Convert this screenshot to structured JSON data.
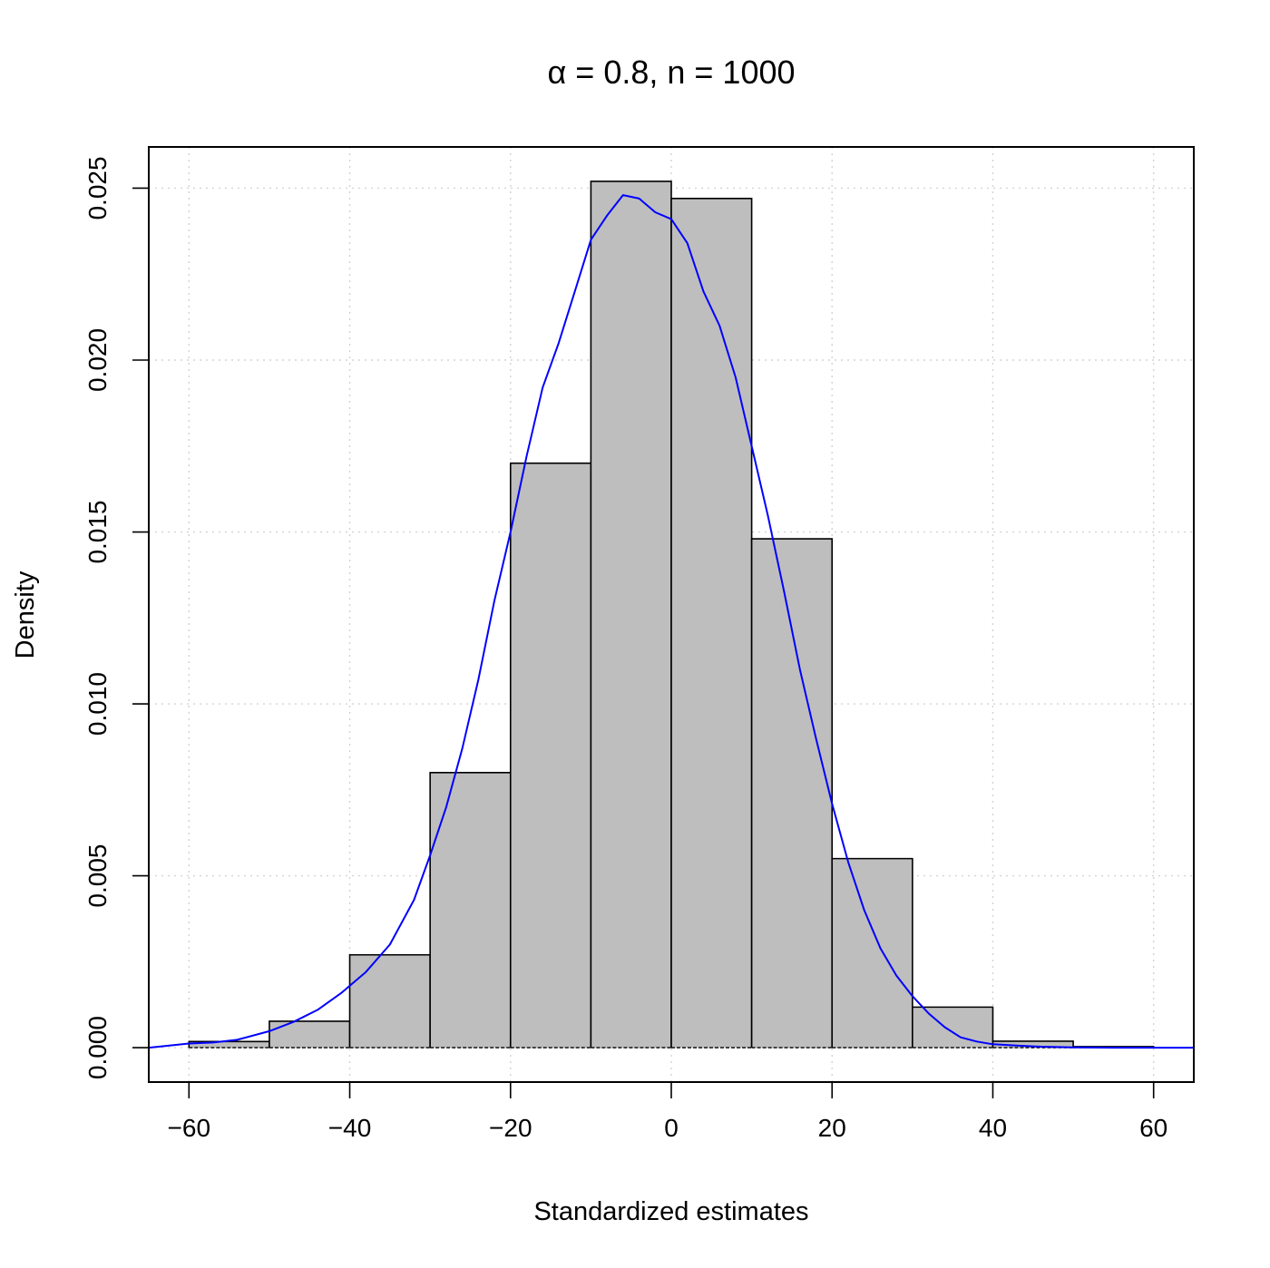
{
  "chart_data": {
    "type": "bar",
    "title": "α = 0.8, n = 1000",
    "xlabel": "Standardized estimates",
    "ylabel": "Density",
    "xlim": [
      -65,
      65
    ],
    "ylim": [
      -0.001,
      0.0262
    ],
    "x_ticks": [
      "−60",
      "−40",
      "−20",
      "0",
      "20",
      "40",
      "60"
    ],
    "x_tick_values": [
      -60,
      -40,
      -20,
      0,
      20,
      40,
      60
    ],
    "y_ticks": [
      "0.000",
      "0.005",
      "0.010",
      "0.015",
      "0.020",
      "0.025"
    ],
    "y_tick_values": [
      0,
      0.005,
      0.01,
      0.015,
      0.02,
      0.025
    ],
    "grid": true,
    "bar_fill": "#bebebe",
    "bar_stroke": "#000000",
    "density_color": "#0000ff",
    "bins": [
      {
        "x0": -60,
        "x1": -50,
        "value": 0.00018
      },
      {
        "x0": -50,
        "x1": -40,
        "value": 0.00077
      },
      {
        "x0": -40,
        "x1": -30,
        "value": 0.0027
      },
      {
        "x0": -30,
        "x1": -20,
        "value": 0.008
      },
      {
        "x0": -20,
        "x1": -10,
        "value": 0.017
      },
      {
        "x0": -10,
        "x1": 0,
        "value": 0.0252
      },
      {
        "x0": 0,
        "x1": 10,
        "value": 0.0247
      },
      {
        "x0": 10,
        "x1": 20,
        "value": 0.0148
      },
      {
        "x0": 20,
        "x1": 30,
        "value": 0.0055
      },
      {
        "x0": 30,
        "x1": 40,
        "value": 0.00118
      },
      {
        "x0": 40,
        "x1": 50,
        "value": 0.00019
      },
      {
        "x0": 50,
        "x1": 60,
        "value": 3e-05
      }
    ],
    "density_curve": {
      "x": [
        -65,
        -60,
        -57,
        -54,
        -50,
        -47,
        -44,
        -41,
        -38,
        -35,
        -32,
        -30,
        -28,
        -26,
        -24,
        -22,
        -20,
        -18,
        -16,
        -14,
        -12,
        -10,
        -8,
        -6,
        -4,
        -2,
        0,
        2,
        4,
        6,
        8,
        10,
        12,
        14,
        16,
        18,
        20,
        22,
        24,
        26,
        28,
        30,
        32,
        34,
        36,
        38,
        40,
        43,
        46,
        50,
        55,
        60,
        65
      ],
      "y": [
        0.0,
        0.00012,
        0.00015,
        0.00023,
        0.00048,
        0.00075,
        0.0011,
        0.0016,
        0.0022,
        0.003,
        0.0043,
        0.0056,
        0.007,
        0.0087,
        0.0107,
        0.013,
        0.015,
        0.0172,
        0.0192,
        0.0205,
        0.022,
        0.0235,
        0.0242,
        0.0248,
        0.0247,
        0.0243,
        0.0241,
        0.0234,
        0.022,
        0.021,
        0.0195,
        0.0175,
        0.0155,
        0.0133,
        0.011,
        0.009,
        0.0071,
        0.0054,
        0.004,
        0.0029,
        0.0021,
        0.0015,
        0.001,
        0.0006,
        0.0003,
        0.00018,
        0.0001,
        6e-05,
        3e-05,
        1e-05,
        0.0,
        0.0,
        0.0
      ]
    }
  }
}
